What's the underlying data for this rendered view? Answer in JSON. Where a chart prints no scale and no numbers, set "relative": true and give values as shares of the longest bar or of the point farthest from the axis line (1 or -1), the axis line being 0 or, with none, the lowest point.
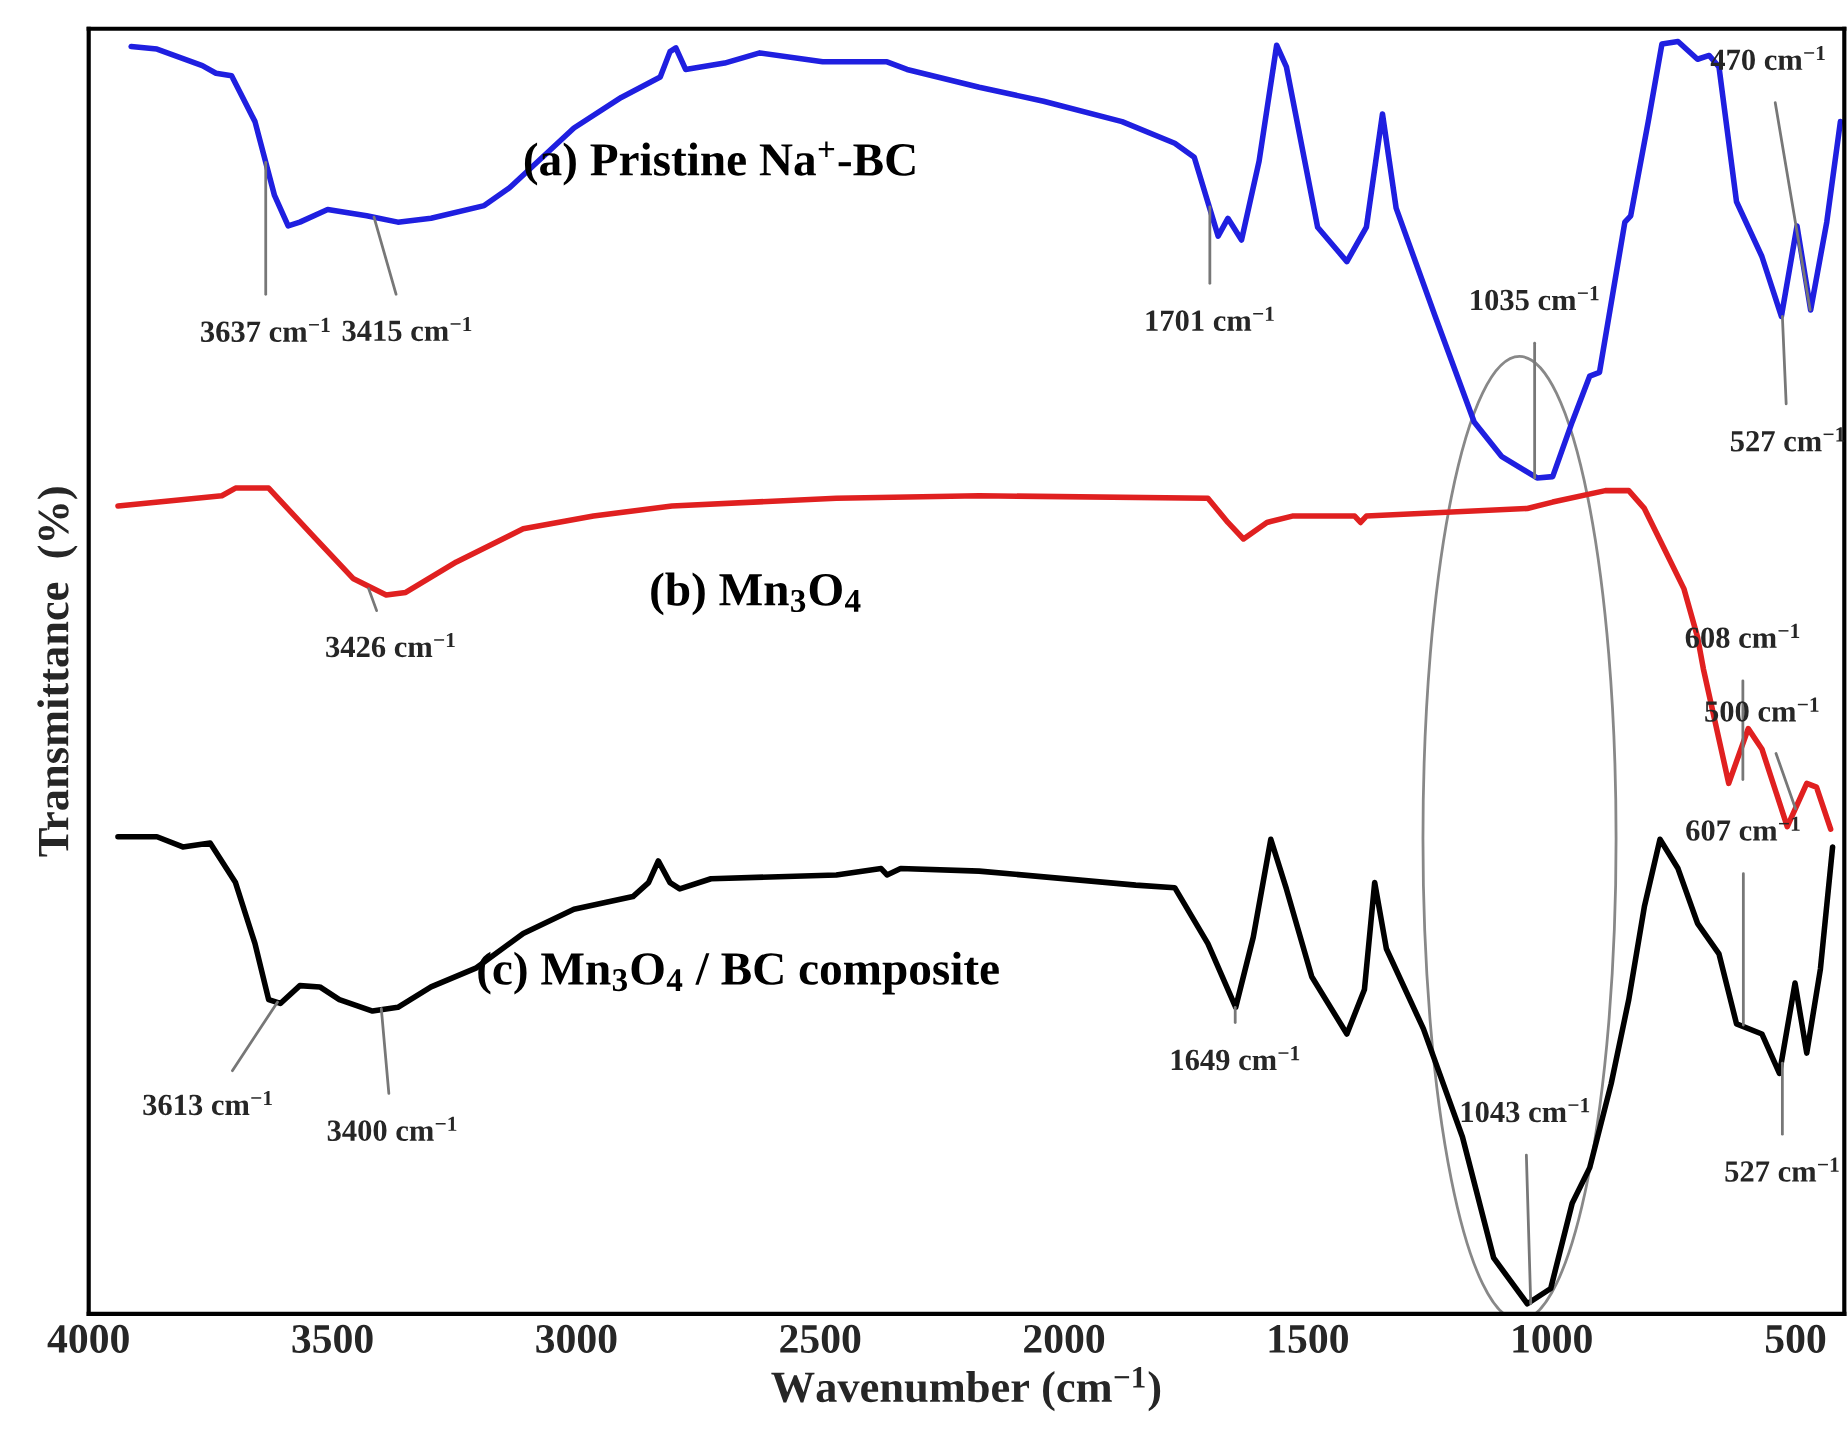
{
  "chart_data": {
    "type": "line",
    "relative": true,
    "xlabel": "Wavenumber (cm$^{−1}$)",
    "ylabel": "Transmittance  (%)",
    "xlim": [
      4000,
      400
    ],
    "xticks": [
      4000,
      3500,
      3000,
      2500,
      2000,
      1500,
      1000,
      500
    ],
    "grid": false,
    "legend": false,
    "marker": "none",
    "line_style": "solid",
    "series": [
      {
        "name": "(a) Pristine Na$^{+}$-BC",
        "color": "#1f1fe0",
        "x": [
          3913,
          3860,
          3767,
          3739,
          3707,
          3659,
          3619,
          3591,
          3567,
          3510,
          3430,
          3366,
          3298,
          3189,
          3137,
          3005,
          2908,
          2828,
          2808,
          2796,
          2776,
          2696,
          2624,
          2495,
          2363,
          2322,
          2174,
          2042,
          1881,
          1773,
          1733,
          1684,
          1664,
          1636,
          1600,
          1564,
          1544,
          1480,
          1420,
          1380,
          1347,
          1319,
          1239,
          1159,
          1103,
          1030,
          998,
          958,
          922,
          902,
          850,
          838,
          802,
          774,
          741,
          701,
          677,
          657,
          621,
          569,
          529,
          497,
          469,
          436,
          408
        ],
        "values": [
          0.996,
          0.994,
          0.981,
          0.975,
          0.973,
          0.937,
          0.879,
          0.855,
          0.858,
          0.868,
          0.863,
          0.858,
          0.861,
          0.871,
          0.885,
          0.932,
          0.956,
          0.972,
          0.992,
          0.995,
          0.978,
          0.983,
          0.991,
          0.984,
          0.984,
          0.978,
          0.964,
          0.953,
          0.937,
          0.92,
          0.909,
          0.847,
          0.861,
          0.844,
          0.906,
          0.997,
          0.98,
          0.854,
          0.827,
          0.854,
          0.943,
          0.869,
          0.784,
          0.701,
          0.674,
          0.657,
          0.658,
          0.701,
          0.737,
          0.74,
          0.858,
          0.863,
          0.937,
          0.998,
          1.0,
          0.986,
          0.989,
          0.98,
          0.874,
          0.831,
          0.784,
          0.855,
          0.789,
          0.858,
          0.937
        ]
      },
      {
        "name": "(b) Mn$_{3}$O$_{4}$",
        "color": "#e02020",
        "x": [
          3940,
          3727,
          3699,
          3631,
          3539,
          3458,
          3390,
          3350,
          3246,
          3109,
          2965,
          2804,
          2467,
          2174,
          1705,
          1664,
          1632,
          1584,
          1532,
          1404,
          1392,
          1380,
          1050,
          998,
          890,
          842,
          810,
          770,
          729,
          701,
          689,
          637,
          597,
          569,
          517,
          477,
          457,
          428
        ],
        "values": [
          0.635,
          0.643,
          0.649,
          0.649,
          0.611,
          0.578,
          0.565,
          0.567,
          0.591,
          0.617,
          0.627,
          0.635,
          0.641,
          0.643,
          0.641,
          0.622,
          0.609,
          0.622,
          0.627,
          0.627,
          0.622,
          0.627,
          0.633,
          0.638,
          0.647,
          0.647,
          0.633,
          0.602,
          0.57,
          0.532,
          0.507,
          0.417,
          0.46,
          0.444,
          0.383,
          0.417,
          0.414,
          0.381
        ]
      },
      {
        "name": "(c) Mn$_{3}$O$_{4}$ / BC composite",
        "color": "#000000",
        "x": [
          3940,
          3860,
          3807,
          3751,
          3699,
          3659,
          3631,
          3607,
          3567,
          3526,
          3486,
          3418,
          3366,
          3298,
          3205,
          3109,
          3005,
          2884,
          2852,
          2832,
          2808,
          2788,
          2724,
          2467,
          2375,
          2363,
          2335,
          2174,
          1853,
          1773,
          1705,
          1648,
          1612,
          1576,
          1544,
          1492,
          1420,
          1384,
          1363,
          1339,
          1263,
          1183,
          1119,
          1050,
          1002,
          958,
          922,
          878,
          842,
          810,
          778,
          741,
          701,
          657,
          621,
          569,
          533,
          501,
          477,
          449,
          424
        ],
        "values": [
          0.375,
          0.375,
          0.367,
          0.37,
          0.339,
          0.291,
          0.247,
          0.244,
          0.258,
          0.257,
          0.247,
          0.238,
          0.241,
          0.257,
          0.272,
          0.299,
          0.318,
          0.328,
          0.339,
          0.356,
          0.339,
          0.334,
          0.342,
          0.345,
          0.35,
          0.345,
          0.35,
          0.348,
          0.337,
          0.335,
          0.291,
          0.241,
          0.296,
          0.373,
          0.334,
          0.265,
          0.22,
          0.255,
          0.339,
          0.287,
          0.224,
          0.139,
          0.044,
          0.008,
          0.02,
          0.087,
          0.115,
          0.181,
          0.247,
          0.32,
          0.373,
          0.35,
          0.307,
          0.283,
          0.228,
          0.22,
          0.189,
          0.26,
          0.205,
          0.271,
          0.367
        ]
      }
    ],
    "annotations": [
      {
        "text": "3637 cm$^{−1}$",
        "x": 3637,
        "y": 0.905
      },
      {
        "text": "3415 cm$^{−1}$",
        "x": 3415,
        "y": 0.862
      },
      {
        "text": "1701 cm$^{−1}$",
        "x": 1701,
        "y": 0.87
      },
      {
        "text": "1035 cm$^{−1}$",
        "x": 1035,
        "y": 0.657
      },
      {
        "text": "527 cm$^{−1}$",
        "x": 527,
        "y": 0.784
      },
      {
        "text": "470 cm$^{−1}$",
        "x": 470,
        "y": 0.789
      },
      {
        "text": "3426 cm$^{−1}$",
        "x": 3426,
        "y": 0.57
      },
      {
        "text": "608 cm$^{−1}$",
        "x": 608,
        "y": 0.42
      },
      {
        "text": "500 cm$^{−1}$",
        "x": 500,
        "y": 0.397
      },
      {
        "text": "3613 cm$^{−1}$",
        "x": 3613,
        "y": 0.245
      },
      {
        "text": "3400 cm$^{−1}$",
        "x": 3400,
        "y": 0.24
      },
      {
        "text": "1649 cm$^{−1}$",
        "x": 1649,
        "y": 0.241
      },
      {
        "text": "1043 cm$^{−1}$",
        "x": 1043,
        "y": 0.008
      },
      {
        "text": "607 cm$^{−1}$",
        "x": 607,
        "y": 0.227
      },
      {
        "text": "527 cm$^{−1}$",
        "x": 527,
        "y": 0.197
      }
    ]
  }
}
